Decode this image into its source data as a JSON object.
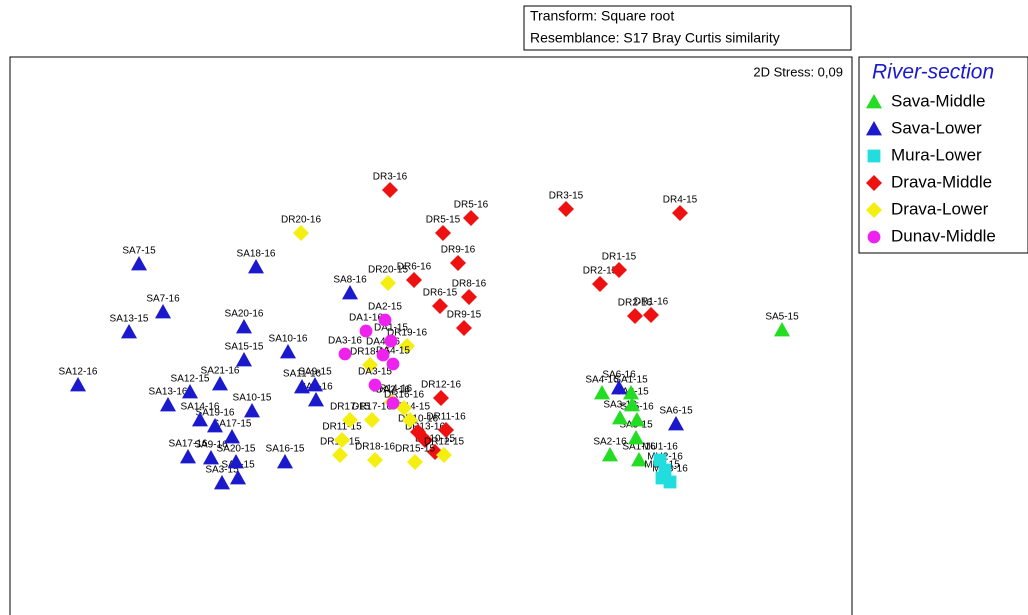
{
  "chart_data": {
    "type": "scatter",
    "info_lines": [
      "Transform: Square root",
      "Resemblance: S17 Bray Curtis similarity"
    ],
    "stress_label": "2D Stress: 0,09",
    "legend_title": "River-section",
    "xlim": [
      0,
      842
    ],
    "ylim": [
      0,
      558
    ],
    "series": [
      {
        "name": "Sava-Middle",
        "color": "#22dd22",
        "marker": "triangle",
        "labels": [
          "SA5-15",
          "SA4-16",
          "SA1-15",
          "SA2-15",
          "SA3-16",
          "SA5-16",
          "SA3-15",
          "SA2-16",
          "SA1-16"
        ],
        "x": [
          772,
          592,
          621,
          622,
          610,
          627,
          626,
          600,
          629
        ],
        "values": [
          285,
          222,
          222,
          210,
          197,
          195,
          177,
          160,
          155
        ]
      },
      {
        "name": "Sava-Lower",
        "color": "#1a1acc",
        "marker": "triangle",
        "labels": [
          "SA7-15",
          "SA18-16",
          "SA7-16",
          "SA13-15",
          "SA20-16",
          "SA12-16",
          "SA8-16",
          "SA15-15",
          "SA10-16",
          "SA11-16",
          "SA9-15",
          "SA21-16",
          "SA12-15",
          "SA13-16",
          "SA14-16",
          "SA19-16",
          "SA10-15",
          "SA17-15",
          "SA17-16",
          "SA9-16",
          "SA20-15",
          "SA16-15",
          "SA3-15",
          "SA4-15",
          "SA1-16",
          "SA6-16",
          "SA6-15"
        ],
        "x": [
          129,
          246,
          153,
          119,
          234,
          68,
          340,
          234,
          278,
          292,
          305,
          210,
          180,
          158,
          190,
          205,
          242,
          222,
          178,
          201,
          226,
          275,
          212,
          228,
          306,
          609,
          666
        ],
        "values": [
          351,
          348,
          303,
          283,
          288,
          230,
          322,
          255,
          263,
          228,
          230,
          231,
          223,
          210,
          195,
          189,
          204,
          178,
          158,
          157,
          153,
          153,
          132,
          137,
          215,
          227,
          191
        ]
      },
      {
        "name": "Mura-Lower",
        "color": "#22dddd",
        "marker": "square",
        "labels": [
          "MU1-16",
          "MU2-16",
          "MU3-15",
          "MU3-16"
        ],
        "x": [
          650,
          655,
          652,
          660
        ],
        "values": [
          155,
          145,
          137,
          133
        ]
      },
      {
        "name": "Drava-Middle",
        "color": "#ee1111",
        "marker": "diamond",
        "labels": [
          "DR3-16",
          "DR5-16",
          "DR5-15",
          "DR3-15",
          "DR4-15",
          "DR9-16",
          "DR6-16",
          "DR8-16",
          "DR6-15",
          "DR9-15",
          "DR1-15",
          "DR2-15",
          "DR2-16",
          "DR1-16",
          "DR12-16",
          "DR10-16",
          "DR13-16",
          "DR11-16",
          "DR10-15"
        ],
        "x": [
          380,
          461,
          433,
          556,
          670,
          448,
          404,
          459,
          430,
          454,
          609,
          590,
          625,
          641,
          431,
          408,
          415,
          436,
          425
        ],
        "values": [
          425,
          397,
          382,
          406,
          402,
          352,
          335,
          318,
          309,
          287,
          345,
          331,
          299,
          300,
          217,
          183,
          175,
          185,
          163
        ]
      },
      {
        "name": "Drava-Lower",
        "color": "#f5ee11",
        "marker": "diamond",
        "labels": [
          "DR20-16",
          "DR20-15",
          "DR19-16",
          "DR18-15",
          "DR14-16",
          "DR16-16",
          "DR17-16",
          "DR17-15",
          "DR14-15",
          "DR11-15",
          "DR16-15",
          "DR18-16",
          "DR15-15",
          "DR12-15"
        ],
        "x": [
          291,
          378,
          397,
          360,
          382,
          394,
          362,
          340,
          400,
          332,
          330,
          365,
          405,
          434
        ],
        "values": [
          382,
          332,
          269,
          250,
          213,
          207,
          195,
          195,
          195,
          175,
          160,
          155,
          153,
          160
        ]
      },
      {
        "name": "Dunav-Middle",
        "color": "#ee22ee",
        "marker": "circle",
        "labels": [
          "DA2-15",
          "DA1-16",
          "DA1-15",
          "DA3-16",
          "DA4-16",
          "DA4-15",
          "DA3-15",
          "DA2-16"
        ],
        "x": [
          375,
          356,
          381,
          335,
          373,
          383,
          365,
          383
        ],
        "values": [
          295,
          284,
          274,
          261,
          260,
          251,
          230,
          212
        ]
      }
    ]
  }
}
